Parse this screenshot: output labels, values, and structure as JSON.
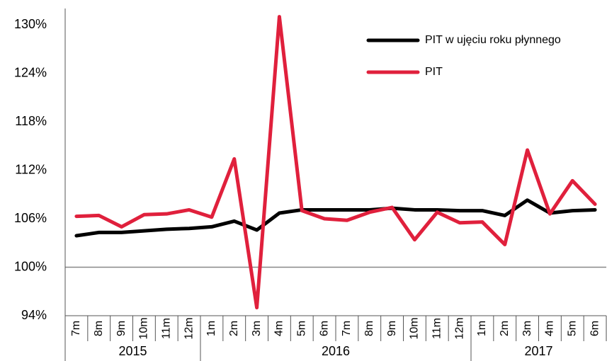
{
  "chart_data": {
    "type": "line",
    "categories": [
      "7m",
      "8m",
      "9m",
      "10m",
      "11m",
      "12m",
      "1m",
      "2m",
      "3m",
      "4m",
      "5m",
      "6m",
      "7m",
      "8m",
      "9m",
      "10m",
      "11m",
      "12m",
      "1m",
      "2m",
      "3m",
      "4m",
      "5m",
      "6m"
    ],
    "groups": [
      {
        "label": "2015",
        "span": 6
      },
      {
        "label": "2016",
        "span": 12
      },
      {
        "label": "2017",
        "span": 6
      }
    ],
    "series": [
      {
        "name": "PIT w ujęciu roku płynnego",
        "color": "#000000",
        "values": [
          103.9,
          104.3,
          104.3,
          104.5,
          104.7,
          104.8,
          105.0,
          105.7,
          104.6,
          106.7,
          107.1,
          107.1,
          107.1,
          107.1,
          107.3,
          107.1,
          107.1,
          107.0,
          107.0,
          106.4,
          108.3,
          106.7,
          107.0,
          107.1
        ]
      },
      {
        "name": "PIT",
        "color": "#e0203c",
        "values": [
          106.3,
          106.4,
          105.0,
          106.5,
          106.6,
          107.1,
          106.2,
          113.4,
          95.0,
          131.0,
          107.0,
          106.0,
          105.8,
          106.8,
          107.4,
          103.4,
          106.8,
          105.5,
          105.6,
          102.8,
          114.5,
          106.6,
          110.7,
          107.8
        ]
      }
    ],
    "ylim": [
      94,
      130
    ],
    "yticks": [
      {
        "value": 94,
        "label": "94%"
      },
      {
        "value": 100,
        "label": "100%"
      },
      {
        "value": 106,
        "label": "106%"
      },
      {
        "value": 112,
        "label": "112%"
      },
      {
        "value": 118,
        "label": "118%"
      },
      {
        "value": 124,
        "label": "124%"
      },
      {
        "value": 130,
        "label": "130%"
      }
    ],
    "hline": 100,
    "legend": "upper right"
  }
}
